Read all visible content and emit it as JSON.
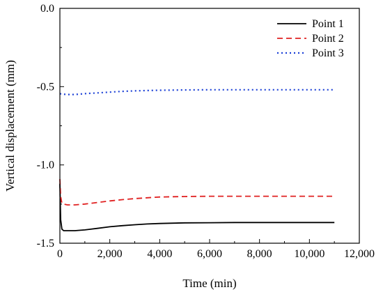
{
  "chart_data": {
    "type": "line",
    "title": "",
    "xlabel": "Time (min)",
    "ylabel": "Vertical displacement (mm)",
    "xlim": [
      0,
      12000
    ],
    "ylim": [
      -1.5,
      0.0
    ],
    "x_ticks": [
      0,
      2000,
      4000,
      6000,
      8000,
      10000,
      12000
    ],
    "x_tick_labels": [
      "0",
      "2,000",
      "4,000",
      "6,000",
      "8,000",
      "10,000",
      "12,000"
    ],
    "y_ticks": [
      0.0,
      -0.5,
      -1.0,
      -1.5
    ],
    "y_tick_labels": [
      "0.0",
      "-0.5",
      "-1.0",
      "-1.5"
    ],
    "legend_position": "top-right",
    "grid": false,
    "series": [
      {
        "name": "Point 1",
        "color": "#000000",
        "style": "solid",
        "x": [
          0,
          30,
          80,
          150,
          300,
          600,
          1000,
          1500,
          2000,
          2500,
          3000,
          3500,
          4000,
          5000,
          6000,
          7000,
          8000,
          9000,
          10000,
          11000
        ],
        "y": [
          -1.12,
          -1.35,
          -1.41,
          -1.42,
          -1.42,
          -1.42,
          -1.415,
          -1.405,
          -1.395,
          -1.388,
          -1.382,
          -1.377,
          -1.374,
          -1.37,
          -1.369,
          -1.368,
          -1.368,
          -1.368,
          -1.368,
          -1.368
        ]
      },
      {
        "name": "Point 2",
        "color": "#e02020",
        "style": "dashed",
        "x": [
          0,
          30,
          80,
          150,
          300,
          600,
          1000,
          1500,
          2000,
          2500,
          3000,
          3500,
          4000,
          5000,
          6000,
          7000,
          8000,
          9000,
          10000,
          11000
        ],
        "y": [
          -1.09,
          -1.2,
          -1.245,
          -1.25,
          -1.255,
          -1.255,
          -1.25,
          -1.24,
          -1.23,
          -1.222,
          -1.215,
          -1.21,
          -1.205,
          -1.202,
          -1.2,
          -1.2,
          -1.2,
          -1.2,
          -1.2,
          -1.2
        ]
      },
      {
        "name": "Point 3",
        "color": "#1a3fd6",
        "style": "dotted",
        "x": [
          0,
          100,
          300,
          600,
          1000,
          1500,
          2000,
          2500,
          3000,
          3500,
          4000,
          5000,
          6000,
          7000,
          8000,
          9000,
          10000,
          11000
        ],
        "y": [
          -0.545,
          -0.548,
          -0.55,
          -0.55,
          -0.545,
          -0.54,
          -0.535,
          -0.53,
          -0.527,
          -0.525,
          -0.523,
          -0.521,
          -0.52,
          -0.52,
          -0.52,
          -0.52,
          -0.52,
          -0.52
        ]
      }
    ]
  }
}
